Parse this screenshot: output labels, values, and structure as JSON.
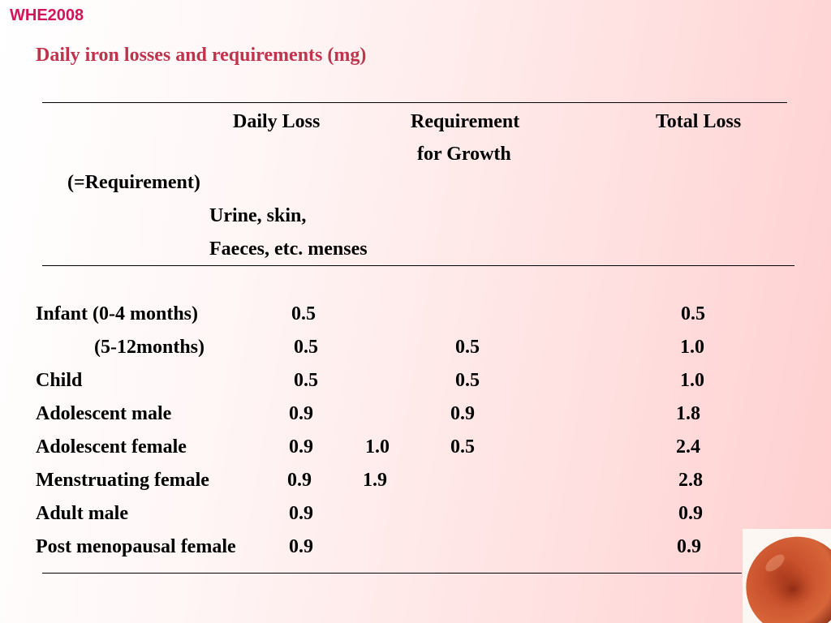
{
  "brand": "WHE2008",
  "title": "Daily iron losses and requirements (mg)",
  "headers": {
    "daily_loss": "Daily Loss",
    "requirement": "Requirement",
    "for_growth": "for Growth",
    "total_loss": "Total Loss",
    "equals_requirement": "(=Requirement)",
    "urine_skin": "Urine, skin,",
    "faeces_menses": "Faeces, etc.  menses"
  },
  "rows": [
    {
      "label": "Infant (0-4 months)",
      "loss": "0.5",
      "menses": "",
      "growth": "",
      "total": "0.5"
    },
    {
      "label": "(5-12months)",
      "loss": "0.5",
      "menses": "",
      "growth": "0.5",
      "total": "1.0"
    },
    {
      "label": "Child",
      "loss": "0.5",
      "menses": "",
      "growth": "0.5",
      "total": "1.0"
    },
    {
      "label": "Adolescent male",
      "loss": "0.9",
      "menses": "",
      "growth": "0.9",
      "total": "1.8"
    },
    {
      "label": "Adolescent female",
      "loss": "0.9",
      "menses": "1.0",
      "growth": "0.5",
      "total": "2.4"
    },
    {
      "label": "Menstruating female",
      "loss": "0.9",
      "menses": "1.9",
      "growth": "",
      "total": "2.8"
    },
    {
      "label": "Adult male",
      "loss": "0.9",
      "menses": "",
      "growth": "",
      "total": "0.9"
    },
    {
      "label": "Post menopausal female",
      "loss": "0.9",
      "menses": "",
      "growth": "",
      "total": "0.9"
    }
  ],
  "decoration": {
    "image": "red-blood-cell-image"
  }
}
